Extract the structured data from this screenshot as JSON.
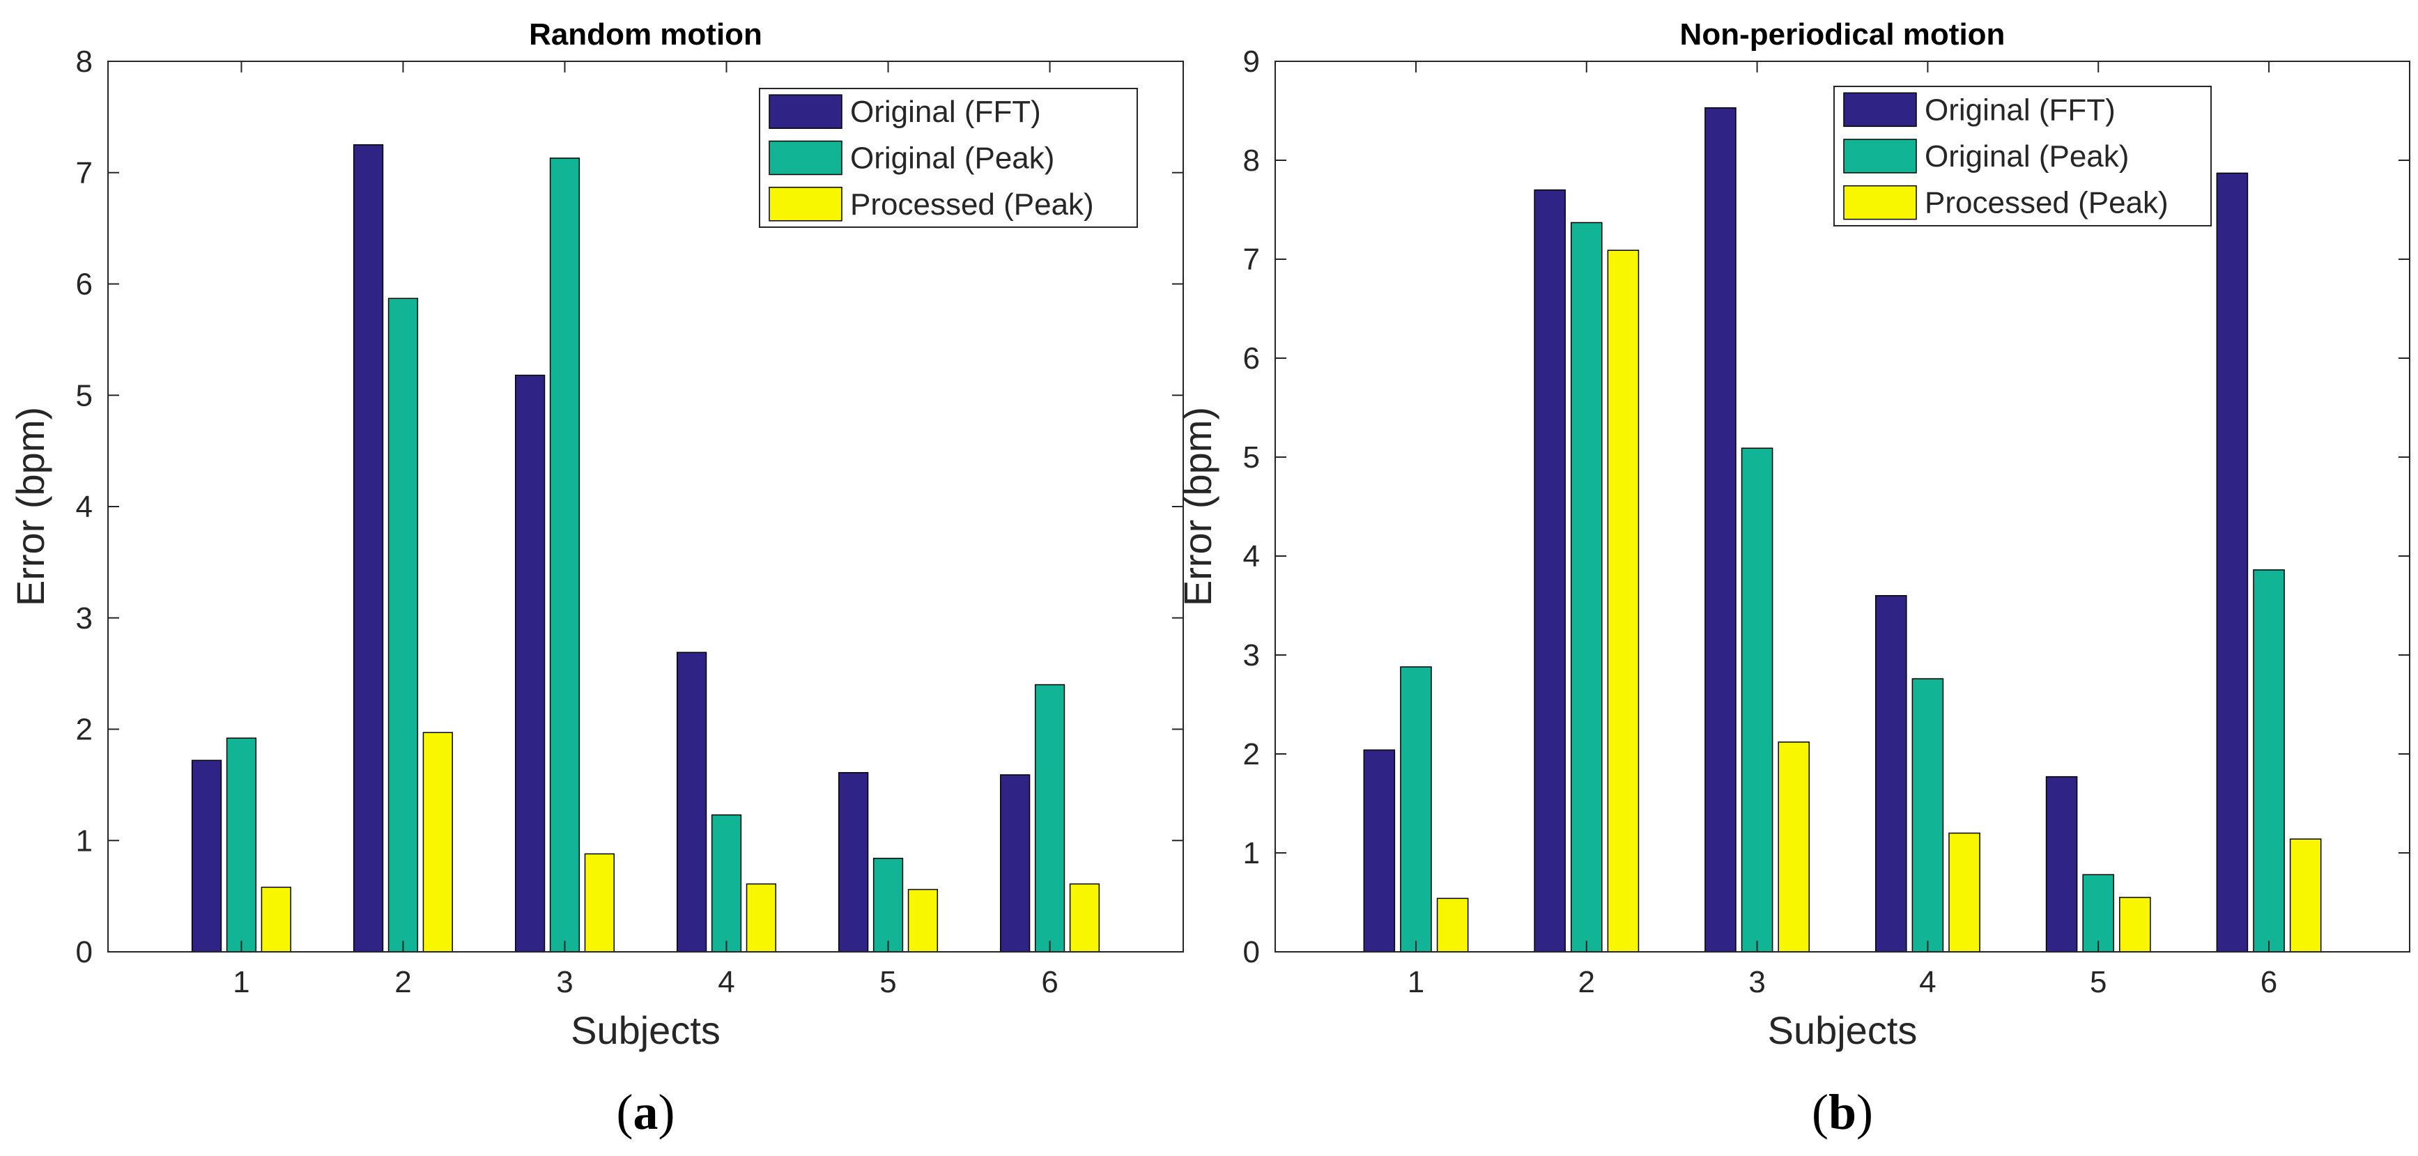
{
  "colors": {
    "original_fft": "#2f2485",
    "original_peak": "#12b496",
    "processed_peak": "#f9f700",
    "axis": "#262626"
  },
  "chart_data": [
    {
      "type": "bar",
      "title": "Random motion",
      "xlabel": "Subjects",
      "ylabel": "Error (bpm)",
      "caption": "a",
      "categories": [
        "1",
        "2",
        "3",
        "4",
        "5",
        "6"
      ],
      "ylim": [
        0,
        8
      ],
      "yticks": [
        0,
        1,
        2,
        3,
        4,
        5,
        6,
        7,
        8
      ],
      "legend_position": "top-right",
      "series": [
        {
          "name": "Original (FFT)",
          "color_key": "original_fft",
          "values": [
            1.72,
            7.25,
            5.18,
            2.69,
            1.61,
            1.59
          ]
        },
        {
          "name": "Original (Peak)",
          "color_key": "original_peak",
          "values": [
            1.92,
            5.87,
            7.13,
            1.23,
            0.84,
            2.4
          ]
        },
        {
          "name": "Processed (Peak)",
          "color_key": "processed_peak",
          "values": [
            0.58,
            1.97,
            0.88,
            0.61,
            0.56,
            0.61
          ]
        }
      ]
    },
    {
      "type": "bar",
      "title": "Non-periodical motion",
      "xlabel": "Subjects",
      "ylabel": "Error (bpm)",
      "caption": "b",
      "categories": [
        "1",
        "2",
        "3",
        "4",
        "5",
        "6"
      ],
      "ylim": [
        0,
        9
      ],
      "yticks": [
        0,
        1,
        2,
        3,
        4,
        5,
        6,
        7,
        8,
        9
      ],
      "legend_position": "top-right",
      "series": [
        {
          "name": "Original (FFT)",
          "color_key": "original_fft",
          "values": [
            2.04,
            7.7,
            8.53,
            3.6,
            1.77,
            7.87
          ]
        },
        {
          "name": "Original (Peak)",
          "color_key": "original_peak",
          "values": [
            2.88,
            7.37,
            5.09,
            2.76,
            0.78,
            3.86
          ]
        },
        {
          "name": "Processed (Peak)",
          "color_key": "processed_peak",
          "values": [
            0.54,
            7.09,
            2.12,
            1.2,
            0.55,
            1.14
          ]
        }
      ]
    }
  ]
}
